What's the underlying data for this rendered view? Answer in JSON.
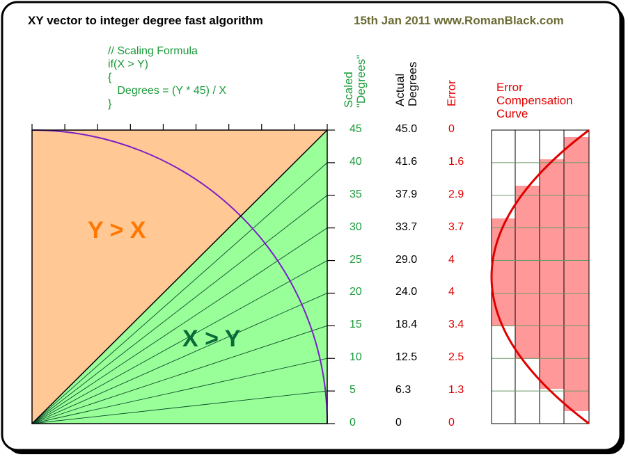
{
  "header": {
    "title": "XY vector to integer degree fast algorithm",
    "credit": "15th Jan 2011 www.RomanBlack.com"
  },
  "code": {
    "lines": [
      "// Scaling Formula",
      "if(X > Y)",
      "{",
      "   Degrees = (Y * 45) / X",
      "}"
    ]
  },
  "regions": {
    "upper_label": "Y > X",
    "lower_label": "X > Y"
  },
  "columns": {
    "scaled_line1": "Scaled",
    "scaled_line2": "\"Degrees\"",
    "actual_line1": "Actual",
    "actual_line2": "Degrees",
    "error": "Error",
    "curve_line1": "Error",
    "curve_line2": "Compensation",
    "curve_line3": "Curve"
  },
  "table": {
    "scaled": [
      "45",
      "40",
      "35",
      "30",
      "25",
      "20",
      "15",
      "10",
      "5",
      "0"
    ],
    "actual": [
      "45.0",
      "41.6",
      "37.9",
      "33.7",
      "29.0",
      "24.0",
      "18.4",
      "12.5",
      "6.3",
      "0"
    ],
    "error": [
      "0",
      "1.6",
      "2.9",
      "3.7",
      "4",
      "4",
      "3.4",
      "2.5",
      "1.3",
      "0"
    ]
  },
  "colors": {
    "green_fill": "#99ff99",
    "orange_fill": "#ffc895",
    "curve_purple": "#7a20c8",
    "error_red": "#e00000",
    "bar_pink": "#ff9999",
    "label_green": "#1a9a3a",
    "label_orange": "#ff7700",
    "label_darkgreen": "#0a6a3a"
  }
}
